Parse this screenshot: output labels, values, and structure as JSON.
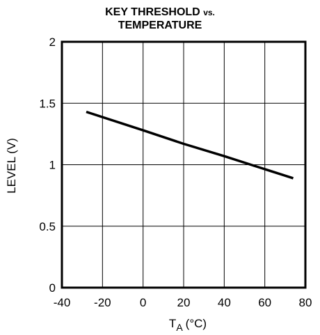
{
  "chart_data": {
    "type": "line",
    "title_main": "KEY THRESHOLD",
    "title_vs": "vs.",
    "title_line2": "TEMPERATURE",
    "xlabel_base": "T",
    "xlabel_sub": "A",
    "xlabel_unit": "(°C)",
    "ylabel": "LEVEL (V)",
    "xlim": [
      -40,
      80
    ],
    "ylim": [
      0,
      2
    ],
    "x_ticks": [
      -40,
      -20,
      0,
      20,
      40,
      60,
      80
    ],
    "y_ticks": [
      0,
      0.5,
      1,
      1.5,
      2
    ],
    "x_tick_labels": [
      "-40",
      "-20",
      "0",
      "20",
      "40",
      "60",
      "80"
    ],
    "y_tick_labels": [
      "0",
      "0.5",
      "1",
      "1.5",
      "2"
    ],
    "grid": true,
    "series": [
      {
        "x": [
          -28,
          0,
          20,
          40,
          55,
          74
        ],
        "y": [
          1.43,
          1.28,
          1.17,
          1.07,
          0.99,
          0.89
        ]
      }
    ]
  }
}
